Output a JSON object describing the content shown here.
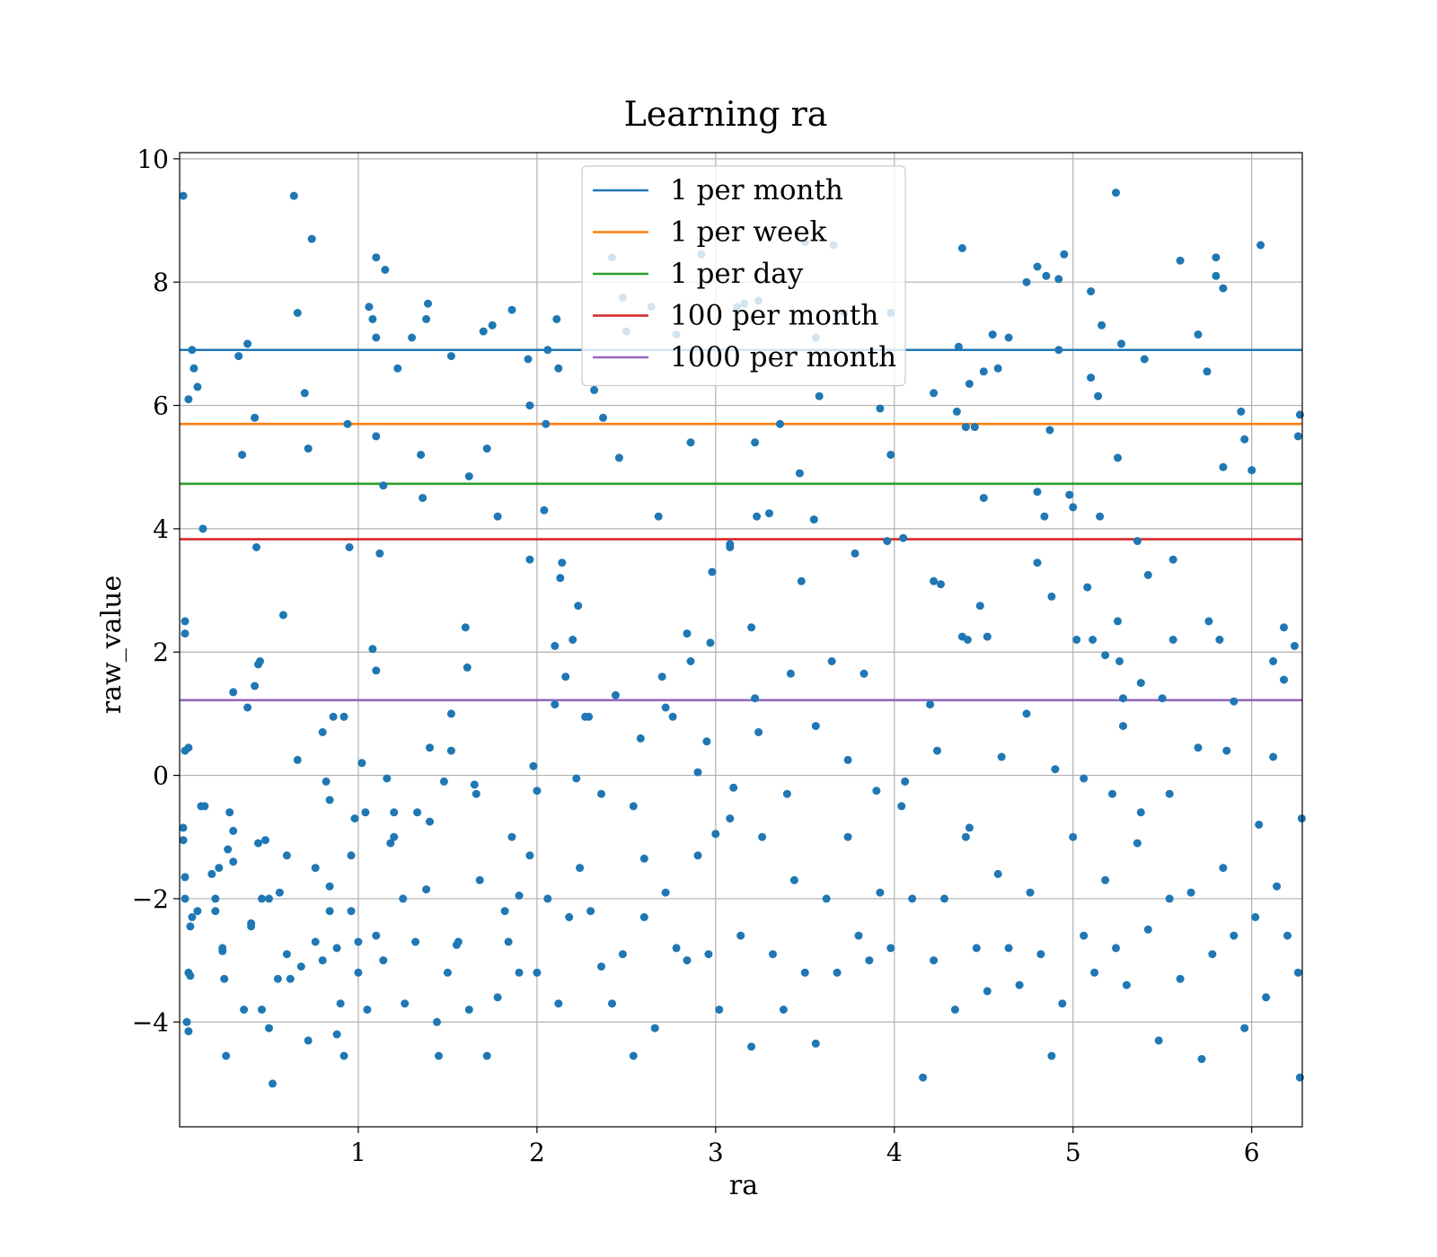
{
  "chart_data": {
    "type": "scatter",
    "title": "Learning ra",
    "xlabel": "ra",
    "ylabel": "raw_value",
    "xlim": [
      0,
      6.283
    ],
    "ylim": [
      -5.7,
      10.1
    ],
    "xticks": [
      {
        "value": 1,
        "label": "1"
      },
      {
        "value": 2,
        "label": "2"
      },
      {
        "value": 3,
        "label": "3"
      },
      {
        "value": 4,
        "label": "4"
      },
      {
        "value": 5,
        "label": "5"
      },
      {
        "value": 6,
        "label": "6"
      }
    ],
    "yticks": [
      {
        "value": -4,
        "label": "−4"
      },
      {
        "value": -2,
        "label": "−2"
      },
      {
        "value": 0,
        "label": "0"
      },
      {
        "value": 2,
        "label": "2"
      },
      {
        "value": 4,
        "label": "4"
      },
      {
        "value": 6,
        "label": "6"
      },
      {
        "value": 8,
        "label": "8"
      },
      {
        "value": 10,
        "label": "10"
      }
    ],
    "grid": true,
    "legend_position": "top-center",
    "point_color": "#1f77b4",
    "hlines": [
      {
        "name": "1 per month",
        "y": 6.9,
        "color": "#1f77b4"
      },
      {
        "name": "1 per week",
        "y": 5.7,
        "color": "#ff7f0e"
      },
      {
        "name": "1 per day",
        "y": 4.73,
        "color": "#2ca02c"
      },
      {
        "name": "100 per month",
        "y": 3.83,
        "color": "#d62728"
      },
      {
        "name": "1000 per month",
        "y": 1.22,
        "color": "#9467bd"
      }
    ],
    "points": [
      [
        0.02,
        9.4
      ],
      [
        0.03,
        2.3
      ],
      [
        0.03,
        2.5
      ],
      [
        0.03,
        0.4
      ],
      [
        0.05,
        6.1
      ],
      [
        0.07,
        6.9
      ],
      [
        0.08,
        6.6
      ],
      [
        0.1,
        6.3
      ],
      [
        0.13,
        4.0
      ],
      [
        0.05,
        0.45
      ],
      [
        0.02,
        -0.85
      ],
      [
        0.02,
        -1.05
      ],
      [
        0.03,
        -1.65
      ],
      [
        0.03,
        -2.0
      ],
      [
        0.06,
        -2.45
      ],
      [
        0.07,
        -2.3
      ],
      [
        0.1,
        -2.2
      ],
      [
        0.05,
        -3.2
      ],
      [
        0.06,
        -3.25
      ],
      [
        0.04,
        -4.0
      ],
      [
        0.05,
        -4.15
      ],
      [
        0.12,
        -0.5
      ],
      [
        0.18,
        -1.6
      ],
      [
        0.2,
        -2.2
      ],
      [
        0.22,
        -1.5
      ],
      [
        0.24,
        -2.85
      ],
      [
        0.25,
        -3.3
      ],
      [
        0.26,
        -4.55
      ],
      [
        0.27,
        -1.2
      ],
      [
        0.28,
        -0.6
      ],
      [
        0.3,
        -0.9
      ],
      [
        0.3,
        1.35
      ],
      [
        0.33,
        6.8
      ],
      [
        0.35,
        5.2
      ],
      [
        0.38,
        7.0
      ],
      [
        0.38,
        1.1
      ],
      [
        0.4,
        -2.4
      ],
      [
        0.42,
        5.8
      ],
      [
        0.43,
        3.7
      ],
      [
        0.44,
        1.8
      ],
      [
        0.45,
        1.85
      ],
      [
        0.42,
        1.45
      ],
      [
        0.44,
        -1.1
      ],
      [
        0.46,
        -2.0
      ],
      [
        0.48,
        -1.05
      ],
      [
        0.5,
        -4.1
      ],
      [
        0.52,
        -5.0
      ],
      [
        0.55,
        -3.3
      ],
      [
        0.58,
        2.6
      ],
      [
        0.6,
        -2.9
      ],
      [
        0.64,
        9.4
      ],
      [
        0.66,
        7.5
      ],
      [
        0.66,
        0.25
      ],
      [
        0.7,
        6.2
      ],
      [
        0.72,
        5.3
      ],
      [
        0.74,
        8.7
      ],
      [
        0.76,
        -1.5
      ],
      [
        0.8,
        0.7
      ],
      [
        0.82,
        -0.1
      ],
      [
        0.84,
        -1.8
      ],
      [
        0.86,
        0.95
      ],
      [
        0.88,
        -2.8
      ],
      [
        0.9,
        -3.7
      ],
      [
        0.92,
        0.95
      ],
      [
        0.94,
        5.7
      ],
      [
        0.95,
        3.7
      ],
      [
        0.96,
        -1.3
      ],
      [
        0.98,
        -0.7
      ],
      [
        1.0,
        -3.2
      ],
      [
        1.02,
        0.2
      ],
      [
        1.04,
        -0.6
      ],
      [
        1.06,
        7.6
      ],
      [
        1.08,
        7.4
      ],
      [
        1.08,
        2.05
      ],
      [
        1.1,
        7.1
      ],
      [
        1.1,
        5.5
      ],
      [
        1.1,
        1.7
      ],
      [
        1.1,
        8.4
      ],
      [
        1.12,
        3.6
      ],
      [
        1.14,
        4.7
      ],
      [
        1.15,
        8.2
      ],
      [
        1.18,
        -1.1
      ],
      [
        1.2,
        -0.6
      ],
      [
        1.22,
        6.6
      ],
      [
        1.25,
        -2.0
      ],
      [
        1.3,
        7.1
      ],
      [
        1.33,
        -0.6
      ],
      [
        1.35,
        5.2
      ],
      [
        1.36,
        4.5
      ],
      [
        1.38,
        7.4
      ],
      [
        1.39,
        7.65
      ],
      [
        1.4,
        -0.75
      ],
      [
        1.45,
        -4.55
      ],
      [
        1.48,
        -0.1
      ],
      [
        1.52,
        6.8
      ],
      [
        1.52,
        1.0
      ],
      [
        1.55,
        -2.75
      ],
      [
        1.6,
        2.4
      ],
      [
        1.61,
        1.75
      ],
      [
        1.62,
        4.85
      ],
      [
        1.65,
        -0.15
      ],
      [
        1.7,
        7.2
      ],
      [
        1.72,
        5.3
      ],
      [
        1.75,
        7.3
      ],
      [
        1.78,
        4.2
      ],
      [
        1.82,
        -2.2
      ],
      [
        1.86,
        7.55
      ],
      [
        1.9,
        -1.95
      ],
      [
        1.95,
        6.75
      ],
      [
        1.96,
        6.0
      ],
      [
        1.96,
        3.5
      ],
      [
        1.98,
        0.15
      ],
      [
        2.0,
        -0.25
      ],
      [
        2.04,
        4.3
      ],
      [
        2.05,
        5.7
      ],
      [
        2.06,
        6.9
      ],
      [
        2.1,
        2.1
      ],
      [
        2.1,
        1.15
      ],
      [
        2.11,
        7.4
      ],
      [
        2.12,
        6.6
      ],
      [
        2.13,
        3.2
      ],
      [
        2.14,
        3.45
      ],
      [
        2.16,
        1.6
      ],
      [
        2.2,
        2.2
      ],
      [
        2.23,
        2.75
      ],
      [
        2.27,
        0.95
      ],
      [
        2.29,
        0.95
      ],
      [
        2.32,
        6.25
      ],
      [
        2.37,
        5.8
      ],
      [
        2.42,
        8.4
      ],
      [
        2.44,
        1.3
      ],
      [
        2.46,
        5.15
      ],
      [
        2.48,
        7.75
      ],
      [
        2.5,
        7.2
      ],
      [
        2.54,
        -0.5
      ],
      [
        2.6,
        -1.35
      ],
      [
        2.64,
        7.6
      ],
      [
        2.68,
        4.2
      ],
      [
        2.7,
        1.6
      ],
      [
        2.72,
        1.1
      ],
      [
        2.78,
        7.15
      ],
      [
        2.84,
        2.3
      ],
      [
        2.86,
        5.4
      ],
      [
        2.86,
        1.85
      ],
      [
        2.92,
        8.45
      ],
      [
        2.95,
        0.55
      ],
      [
        2.97,
        2.15
      ],
      [
        2.98,
        3.3
      ],
      [
        3.0,
        -0.95
      ],
      [
        3.08,
        3.75
      ],
      [
        3.08,
        3.7
      ],
      [
        3.12,
        7.6
      ],
      [
        3.16,
        7.65
      ],
      [
        3.2,
        2.4
      ],
      [
        3.22,
        1.25
      ],
      [
        3.22,
        5.4
      ],
      [
        3.23,
        4.2
      ],
      [
        3.24,
        7.7
      ],
      [
        3.3,
        4.25
      ],
      [
        3.36,
        5.7
      ],
      [
        3.42,
        1.65
      ],
      [
        3.47,
        4.9
      ],
      [
        3.48,
        3.15
      ],
      [
        3.5,
        8.65
      ],
      [
        3.55,
        4.15
      ],
      [
        3.56,
        7.1
      ],
      [
        3.58,
        6.15
      ],
      [
        3.65,
        1.85
      ],
      [
        3.66,
        8.6
      ],
      [
        3.72,
        7.5
      ],
      [
        3.78,
        3.6
      ],
      [
        3.83,
        1.65
      ],
      [
        3.92,
        5.95
      ],
      [
        3.96,
        3.8
      ],
      [
        3.98,
        5.2
      ],
      [
        3.98,
        7.5
      ],
      [
        4.05,
        3.85
      ],
      [
        4.2,
        1.15
      ],
      [
        4.22,
        3.15
      ],
      [
        4.22,
        6.2
      ],
      [
        4.26,
        3.1
      ],
      [
        4.36,
        6.95
      ],
      [
        4.35,
        5.9
      ],
      [
        4.38,
        8.55
      ],
      [
        4.38,
        2.25
      ],
      [
        4.4,
        5.65
      ],
      [
        4.41,
        2.2
      ],
      [
        4.42,
        6.35
      ],
      [
        4.45,
        5.65
      ],
      [
        4.48,
        2.75
      ],
      [
        4.5,
        4.5
      ],
      [
        4.5,
        6.55
      ],
      [
        4.52,
        2.25
      ],
      [
        4.55,
        7.15
      ],
      [
        4.58,
        6.6
      ],
      [
        4.64,
        7.1
      ],
      [
        4.74,
        8.0
      ],
      [
        4.8,
        8.25
      ],
      [
        4.8,
        4.6
      ],
      [
        4.8,
        3.45
      ],
      [
        4.84,
        4.2
      ],
      [
        4.85,
        8.1
      ],
      [
        4.87,
        5.6
      ],
      [
        4.88,
        2.9
      ],
      [
        4.92,
        8.05
      ],
      [
        4.92,
        6.9
      ],
      [
        4.95,
        8.45
      ],
      [
        4.98,
        4.55
      ],
      [
        5.0,
        4.35
      ],
      [
        5.02,
        2.2
      ],
      [
        5.08,
        3.05
      ],
      [
        5.1,
        6.45
      ],
      [
        5.1,
        7.85
      ],
      [
        5.11,
        2.2
      ],
      [
        5.14,
        6.15
      ],
      [
        5.15,
        4.2
      ],
      [
        5.16,
        7.3
      ],
      [
        5.18,
        1.95
      ],
      [
        5.24,
        9.45
      ],
      [
        5.25,
        5.15
      ],
      [
        5.25,
        2.5
      ],
      [
        5.26,
        1.85
      ],
      [
        5.27,
        7.0
      ],
      [
        5.28,
        1.25
      ],
      [
        5.28,
        0.8
      ],
      [
        5.36,
        3.8
      ],
      [
        5.38,
        1.5
      ],
      [
        5.4,
        6.75
      ],
      [
        5.42,
        3.25
      ],
      [
        5.5,
        1.25
      ],
      [
        5.56,
        2.2
      ],
      [
        5.56,
        3.5
      ],
      [
        5.6,
        8.35
      ],
      [
        5.7,
        7.15
      ],
      [
        5.75,
        6.55
      ],
      [
        5.76,
        2.5
      ],
      [
        5.8,
        8.4
      ],
      [
        5.8,
        8.1
      ],
      [
        5.82,
        2.2
      ],
      [
        5.84,
        5.0
      ],
      [
        5.84,
        7.9
      ],
      [
        5.9,
        1.2
      ],
      [
        5.94,
        5.9
      ],
      [
        5.96,
        5.45
      ],
      [
        6.0,
        4.95
      ],
      [
        6.05,
        8.6
      ],
      [
        6.12,
        1.85
      ],
      [
        6.18,
        2.4
      ],
      [
        6.18,
        1.55
      ],
      [
        6.24,
        2.1
      ],
      [
        6.26,
        5.5
      ],
      [
        6.27,
        5.85
      ],
      [
        6.28,
        -0.7
      ],
      [
        0.2,
        -2.0
      ],
      [
        0.24,
        -2.8
      ],
      [
        0.3,
        -1.4
      ],
      [
        0.36,
        -3.8
      ],
      [
        0.4,
        -2.45
      ],
      [
        0.46,
        -3.8
      ],
      [
        0.5,
        -2.0
      ],
      [
        0.56,
        -1.9
      ],
      [
        0.62,
        -3.3
      ],
      [
        0.68,
        -3.1
      ],
      [
        0.72,
        -4.3
      ],
      [
        0.76,
        -2.7
      ],
      [
        0.8,
        -3.0
      ],
      [
        0.84,
        -2.2
      ],
      [
        0.88,
        -4.2
      ],
      [
        0.92,
        -4.55
      ],
      [
        0.96,
        -2.2
      ],
      [
        1.0,
        -2.7
      ],
      [
        1.05,
        -3.8
      ],
      [
        1.1,
        -2.6
      ],
      [
        1.14,
        -3.0
      ],
      [
        1.2,
        -1.0
      ],
      [
        1.26,
        -3.7
      ],
      [
        1.32,
        -2.7
      ],
      [
        1.38,
        -1.85
      ],
      [
        1.44,
        -4.0
      ],
      [
        1.5,
        -3.2
      ],
      [
        1.56,
        -2.7
      ],
      [
        1.62,
        -3.8
      ],
      [
        1.68,
        -1.7
      ],
      [
        1.72,
        -4.55
      ],
      [
        1.78,
        -3.6
      ],
      [
        1.84,
        -2.7
      ],
      [
        1.9,
        -3.2
      ],
      [
        1.96,
        -1.3
      ],
      [
        2.0,
        -3.2
      ],
      [
        2.06,
        -2.0
      ],
      [
        2.12,
        -3.7
      ],
      [
        2.18,
        -2.3
      ],
      [
        2.24,
        -1.5
      ],
      [
        2.3,
        -2.2
      ],
      [
        2.36,
        -3.1
      ],
      [
        2.42,
        -3.7
      ],
      [
        2.48,
        -2.9
      ],
      [
        2.54,
        -4.55
      ],
      [
        2.6,
        -2.3
      ],
      [
        2.66,
        -4.1
      ],
      [
        2.72,
        -1.9
      ],
      [
        2.78,
        -2.8
      ],
      [
        2.84,
        -3.0
      ],
      [
        2.9,
        -1.3
      ],
      [
        2.96,
        -2.9
      ],
      [
        3.02,
        -3.8
      ],
      [
        3.08,
        -0.7
      ],
      [
        3.14,
        -2.6
      ],
      [
        3.2,
        -4.4
      ],
      [
        3.26,
        -1.0
      ],
      [
        3.32,
        -2.9
      ],
      [
        3.38,
        -3.8
      ],
      [
        3.44,
        -1.7
      ],
      [
        3.5,
        -3.2
      ],
      [
        3.56,
        -4.35
      ],
      [
        3.62,
        -2.0
      ],
      [
        3.68,
        -3.2
      ],
      [
        3.74,
        -1.0
      ],
      [
        3.8,
        -2.6
      ],
      [
        3.86,
        -3.0
      ],
      [
        3.92,
        -1.9
      ],
      [
        3.98,
        -2.8
      ],
      [
        4.04,
        -0.5
      ],
      [
        4.1,
        -2.0
      ],
      [
        4.16,
        -4.9
      ],
      [
        4.22,
        -3.0
      ],
      [
        4.28,
        -2.0
      ],
      [
        4.34,
        -3.8
      ],
      [
        4.4,
        -1.0
      ],
      [
        4.46,
        -2.8
      ],
      [
        4.52,
        -3.5
      ],
      [
        4.58,
        -1.6
      ],
      [
        4.64,
        -2.8
      ],
      [
        4.7,
        -3.4
      ],
      [
        4.76,
        -1.9
      ],
      [
        4.82,
        -2.9
      ],
      [
        4.88,
        -4.55
      ],
      [
        4.94,
        -3.7
      ],
      [
        5.0,
        -1.0
      ],
      [
        5.06,
        -2.6
      ],
      [
        5.12,
        -3.2
      ],
      [
        5.18,
        -1.7
      ],
      [
        5.24,
        -2.8
      ],
      [
        5.3,
        -3.4
      ],
      [
        5.36,
        -1.1
      ],
      [
        5.42,
        -2.5
      ],
      [
        5.48,
        -4.3
      ],
      [
        5.54,
        -2.0
      ],
      [
        5.6,
        -3.3
      ],
      [
        5.66,
        -1.9
      ],
      [
        5.72,
        -4.6
      ],
      [
        5.78,
        -2.9
      ],
      [
        5.84,
        -1.5
      ],
      [
        5.9,
        -2.6
      ],
      [
        5.96,
        -4.1
      ],
      [
        6.02,
        -2.3
      ],
      [
        6.08,
        -3.6
      ],
      [
        6.14,
        -1.8
      ],
      [
        6.2,
        -2.6
      ],
      [
        6.26,
        -3.2
      ],
      [
        6.27,
        -4.9
      ],
      [
        0.14,
        -0.5
      ],
      [
        0.6,
        -1.3
      ],
      [
        0.84,
        -0.4
      ],
      [
        1.16,
        -0.05
      ],
      [
        1.4,
        0.45
      ],
      [
        1.52,
        0.4
      ],
      [
        1.66,
        -0.3
      ],
      [
        1.86,
        -1.0
      ],
      [
        2.22,
        -0.05
      ],
      [
        2.36,
        -0.3
      ],
      [
        2.58,
        0.6
      ],
      [
        2.76,
        0.95
      ],
      [
        2.9,
        0.05
      ],
      [
        3.1,
        -0.2
      ],
      [
        3.24,
        0.7
      ],
      [
        3.4,
        -0.3
      ],
      [
        3.56,
        0.8
      ],
      [
        3.74,
        0.25
      ],
      [
        3.9,
        -0.25
      ],
      [
        4.06,
        -0.1
      ],
      [
        4.24,
        0.4
      ],
      [
        4.42,
        -0.85
      ],
      [
        4.6,
        0.3
      ],
      [
        4.74,
        1.0
      ],
      [
        4.9,
        0.1
      ],
      [
        5.06,
        -0.05
      ],
      [
        5.22,
        -0.3
      ],
      [
        5.38,
        -0.6
      ],
      [
        5.54,
        -0.3
      ],
      [
        5.7,
        0.45
      ],
      [
        5.86,
        0.4
      ],
      [
        6.04,
        -0.8
      ],
      [
        6.12,
        0.3
      ]
    ]
  }
}
